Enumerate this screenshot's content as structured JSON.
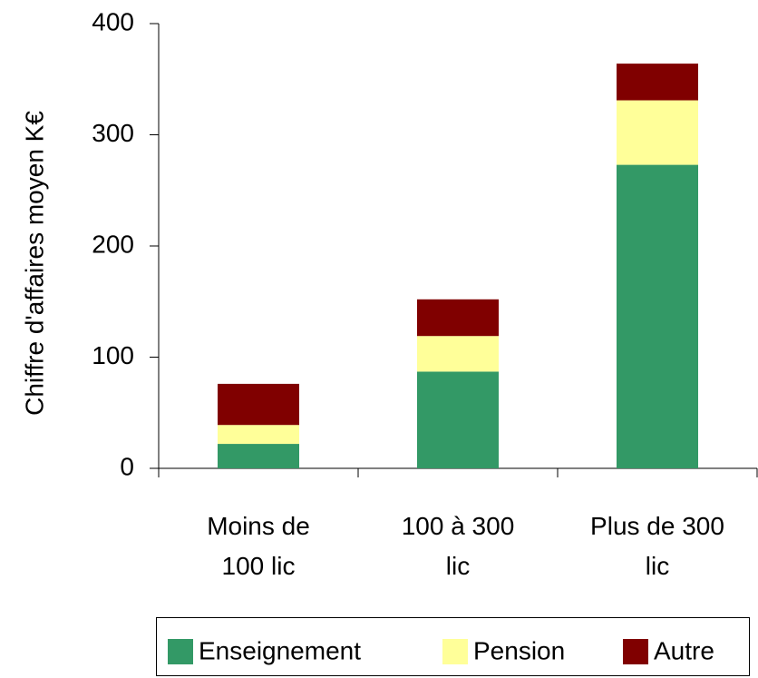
{
  "chart_data": {
    "type": "stacked_bar",
    "y_label": "Chiffre d'affaires moyen K€",
    "categories": [
      "Moins de 100 lic",
      "100 à 300 lic",
      "Plus de 300 lic"
    ],
    "series": [
      {
        "name": "Enseignement",
        "color": "#339966",
        "values": [
          22,
          87,
          273
        ]
      },
      {
        "name": "Pension",
        "color": "#ffff99",
        "values": [
          17,
          32,
          58
        ]
      },
      {
        "name": "Autre",
        "color": "#800000",
        "values": [
          37,
          33,
          33
        ]
      }
    ],
    "ylim": [
      0,
      400
    ],
    "yticks": [
      0,
      100,
      200,
      300,
      400
    ],
    "grid": false
  }
}
